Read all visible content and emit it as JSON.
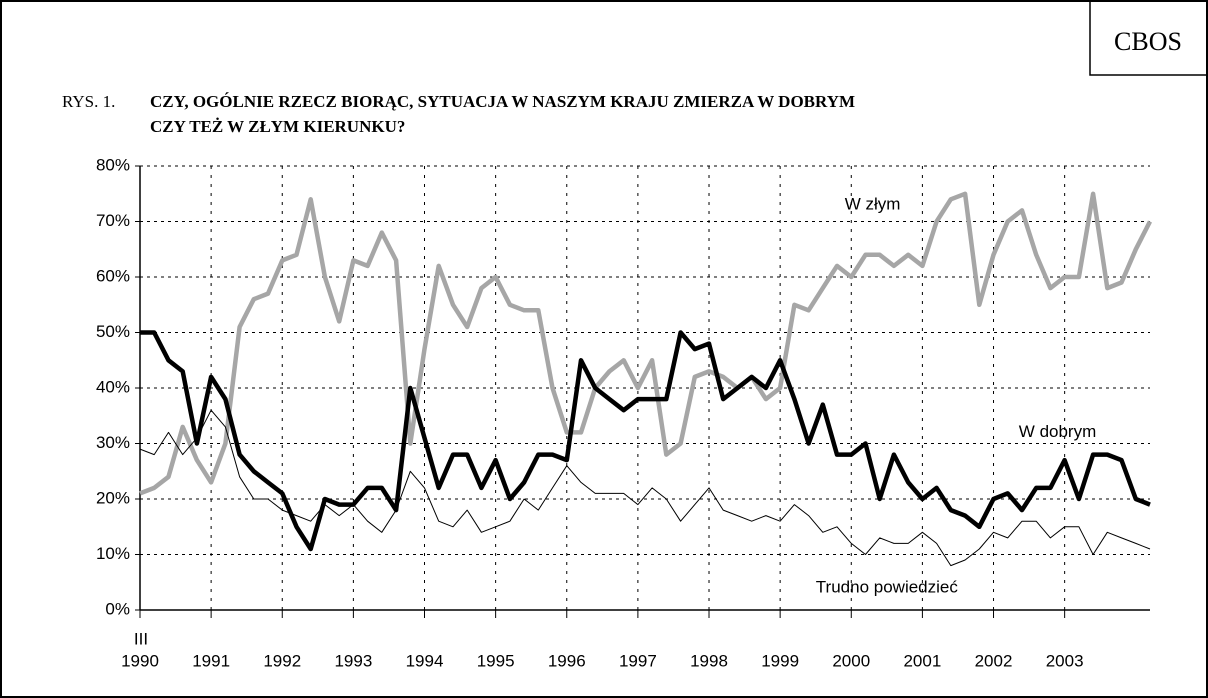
{
  "source": "CBOS",
  "chart_data": {
    "type": "line",
    "figure_label": "RYS. 1.",
    "title_lines": [
      "CZY, OGÓLNIE RZECZ BIORĄC, SYTUACJA W NASZYM KRAJU ZMIERZA W DOBRYM",
      "CZY TEŻ W ZŁYM KIERUNKU?"
    ],
    "start_month": "III",
    "x": [
      1990,
      1990.2,
      1990.4,
      1990.6,
      1990.8,
      1991,
      1991.2,
      1991.4,
      1991.6,
      1991.8,
      1992,
      1992.2,
      1992.4,
      1992.6,
      1992.8,
      1993,
      1993.2,
      1993.4,
      1993.6,
      1993.8,
      1994,
      1994.2,
      1994.4,
      1994.6,
      1994.8,
      1995,
      1995.2,
      1995.4,
      1995.6,
      1995.8,
      1996,
      1996.2,
      1996.4,
      1996.6,
      1996.8,
      1997,
      1997.2,
      1997.4,
      1997.6,
      1997.8,
      1998,
      1998.2,
      1998.4,
      1998.6,
      1998.8,
      1999,
      1999.2,
      1999.4,
      1999.6,
      1999.8,
      2000,
      2000.2,
      2000.4,
      2000.6,
      2000.8,
      2001,
      2001.2,
      2001.4,
      2001.6,
      2001.8,
      2002,
      2002.2,
      2002.4,
      2002.6,
      2002.8,
      2003,
      2003.2,
      2003.4,
      2003.6,
      2003.8,
      2004,
      2004.2
    ],
    "series": [
      {
        "name": "W złym",
        "color": "#a6a6a6",
        "width": 4.5,
        "label_pos": [
          2000.3,
          73
        ],
        "values": [
          21,
          22,
          24,
          33,
          27,
          23,
          30,
          51,
          56,
          57,
          63,
          64,
          74,
          60,
          52,
          63,
          62,
          68,
          63,
          30,
          47,
          62,
          55,
          51,
          58,
          60,
          55,
          54,
          54,
          40,
          32,
          32,
          40,
          43,
          45,
          40,
          45,
          28,
          30,
          42,
          43,
          42,
          40,
          42,
          38,
          40,
          55,
          54,
          58,
          62,
          60,
          64,
          64,
          62,
          64,
          62,
          70,
          74,
          75,
          55,
          64,
          70,
          72,
          64,
          58,
          60,
          60,
          75,
          58,
          59,
          65,
          70
        ]
      },
      {
        "name": "W dobrym",
        "color": "#000000",
        "width": 4.5,
        "label_pos": [
          2002.9,
          32
        ],
        "values": [
          50,
          50,
          45,
          43,
          30,
          42,
          38,
          28,
          25,
          23,
          21,
          15,
          11,
          20,
          19,
          19,
          22,
          22,
          18,
          40,
          31,
          22,
          28,
          28,
          22,
          27,
          20,
          23,
          28,
          28,
          27,
          45,
          40,
          38,
          36,
          38,
          38,
          38,
          50,
          47,
          48,
          38,
          40,
          42,
          40,
          45,
          38,
          30,
          37,
          28,
          28,
          30,
          20,
          28,
          23,
          20,
          22,
          18,
          17,
          15,
          20,
          21,
          18,
          22,
          22,
          27,
          20,
          28,
          28,
          27,
          20,
          19
        ]
      },
      {
        "name": "Trudno powiedzieć",
        "color": "#000000",
        "width": 1,
        "label_pos": [
          2000.5,
          4
        ],
        "values": [
          29,
          28,
          32,
          28,
          31,
          36,
          33,
          24,
          20,
          20,
          18,
          17,
          16,
          19,
          17,
          19,
          16,
          14,
          18,
          25,
          22,
          16,
          15,
          18,
          14,
          15,
          16,
          20,
          18,
          22,
          26,
          23,
          21,
          21,
          21,
          19,
          22,
          20,
          16,
          19,
          22,
          18,
          17,
          16,
          17,
          16,
          19,
          17,
          14,
          15,
          12,
          10,
          13,
          12,
          12,
          14,
          12,
          8,
          9,
          11,
          14,
          13,
          16,
          16,
          13,
          15,
          15,
          10,
          14,
          13,
          12,
          11
        ]
      }
    ],
    "xlim": [
      1990,
      2004.2
    ],
    "xticks": [
      1990,
      1991,
      1992,
      1993,
      1994,
      1995,
      1996,
      1997,
      1998,
      1999,
      2000,
      2001,
      2002,
      2003
    ],
    "ylim": [
      0,
      80
    ],
    "yticks": [
      {
        "value": 0,
        "label": "0%"
      },
      {
        "value": 10,
        "label": "10%"
      },
      {
        "value": 20,
        "label": "20%"
      },
      {
        "value": 30,
        "label": "30%"
      },
      {
        "value": 40,
        "label": "40%"
      },
      {
        "value": 50,
        "label": "50%"
      },
      {
        "value": 60,
        "label": "60%"
      },
      {
        "value": 70,
        "label": "70%"
      },
      {
        "value": 80,
        "label": "80%"
      }
    ],
    "grid": true
  }
}
